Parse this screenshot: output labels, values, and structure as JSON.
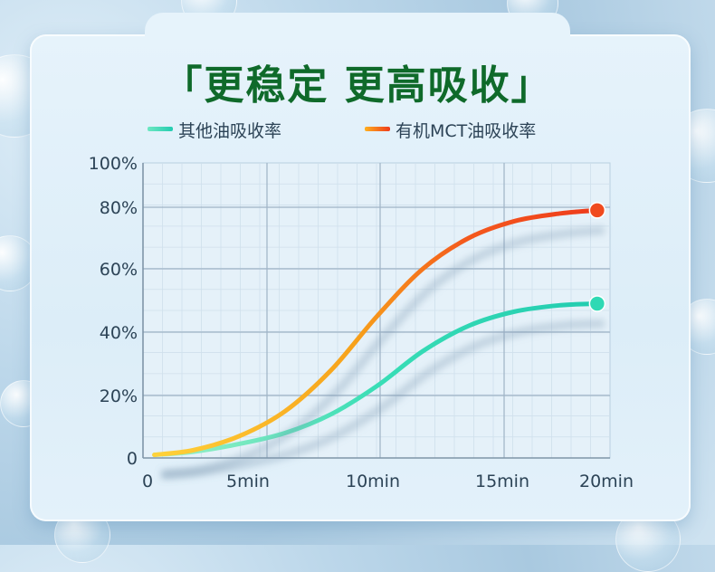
{
  "title": "「更稳定 更高吸收」",
  "legend": [
    {
      "label": "其他油吸收率",
      "color": "#2fd9b4"
    },
    {
      "label": "有机MCT油吸收率",
      "color": "#f04a1e"
    }
  ],
  "chart_data": {
    "type": "line",
    "title": "「更稳定 更高吸收」",
    "x_ticks": [
      "0",
      "5min",
      "10min",
      "15min",
      "20min"
    ],
    "y_ticks": [
      "0",
      "20%",
      "40%",
      "60%",
      "80%",
      "100%"
    ],
    "x_range": [
      0,
      20
    ],
    "y_range": [
      0,
      100
    ],
    "grid": true,
    "legend_position": "top",
    "series": [
      {
        "name": "其他油吸收率",
        "color": "#2fd9b4",
        "x": [
          0.3,
          2,
          4,
          6,
          8,
          10,
          12,
          14,
          16,
          18,
          19.6
        ],
        "y": [
          1,
          2,
          4.5,
          8,
          14,
          23,
          34,
          42,
          46.5,
          48.5,
          49
        ]
      },
      {
        "name": "有机MCT油吸收率",
        "color": "#f04a1e",
        "x": [
          0.3,
          2,
          4,
          6,
          8,
          10,
          12,
          14,
          16,
          18,
          19.6
        ],
        "y": [
          1,
          2.5,
          7,
          15,
          28,
          45,
          60,
          70,
          75.5,
          78,
          79
        ]
      }
    ]
  }
}
